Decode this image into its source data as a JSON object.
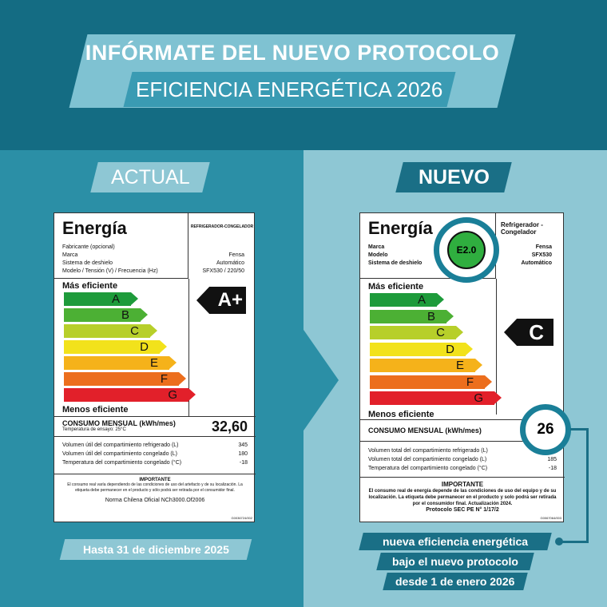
{
  "header": {
    "line1": "INFÓRMATE DEL NUEVO PROTOCOLO DE",
    "line2": "EFICIENCIA ENERGÉTICA 2026"
  },
  "left": {
    "tag": "ACTUAL",
    "footer": "Hasta 31 de diciembre 2025"
  },
  "right": {
    "tag": "NUEVO",
    "footer_lines": [
      "nueva eficiencia energética",
      "bajo el nuevo protocolo",
      "desde 1 de enero 2026"
    ]
  },
  "old_label": {
    "title": "Energía",
    "category": "REFRIGERADOR-CONGELADOR",
    "fields": [
      {
        "k": "Fabricante (opcional)",
        "v": ""
      },
      {
        "k": "Marca",
        "v": "Fensa"
      },
      {
        "k": "Sistema de deshielo",
        "v": "Automático"
      },
      {
        "k": "Modelo / Tensión (V) / Frecuencia (Hz)",
        "v": "SFX530 / 220/50"
      }
    ],
    "mas": "Más eficiente",
    "menos": "Menos eficiente",
    "grades": [
      "A",
      "B",
      "C",
      "D",
      "E",
      "F",
      "G"
    ],
    "rating": "A+",
    "consumo": "CONSUMO MENSUAL (kWh/mes)",
    "consumo_value": "32,60",
    "temp_test": "Temperatura de ensayo: 25°C",
    "specs": [
      {
        "k": "Volumen útil del compartimiento refrigerado (L)",
        "v": "345"
      },
      {
        "k": "Volumen útil del compartimiento congelado (L)",
        "v": "180"
      },
      {
        "k": "Temperatura del compartimiento congelado (°C)",
        "v": "-18"
      }
    ],
    "importante": "IMPORTANTE",
    "note": "El consumo real varía dependiendo de las condiciones de uso del artefacto y de su localización. La etiqueta debe permanecer en el producto y sólo podrá ser retirada por el consumidor final.",
    "norma": "Norma Chilena Oficial NCh3000.Of2006",
    "code": "G0036724/002"
  },
  "new_label": {
    "title": "Energía",
    "category": "Refrigerador - Congelador",
    "fields": [
      {
        "k": "Marca",
        "v": "Fensa"
      },
      {
        "k": "Modelo",
        "v": "SFX530"
      },
      {
        "k": "Sistema de deshielo",
        "v": "Automático"
      }
    ],
    "badge": "E2.0",
    "mas": "Más eficiente",
    "menos": "Menos eficiente",
    "grades": [
      "A",
      "B",
      "C",
      "D",
      "E",
      "F",
      "G"
    ],
    "rating": "C",
    "consumo": "CONSUMO MENSUAL (kWh/mes)",
    "consumo_value": "26",
    "specs": [
      {
        "k": "Volumen total del compartimiento refrigerado (L)",
        "v": ""
      },
      {
        "k": "Volumen total del compartimiento congelado (L)",
        "v": "185"
      },
      {
        "k": "Temperatura del compartimiento congelado (°C)",
        "v": "-18"
      }
    ],
    "importante": "IMPORTANTE",
    "note": "El consumo real de energía depende de las condiciones de uso del equipo y de su localización. La etiqueta debe permanecer en el producto y solo podrá ser retirada por el consumidor final. Actualización 2024.",
    "protocolo": "Protocolo SEC PE N° 1/17/2",
    "code": "G0067064/003"
  },
  "colors": {
    "A": "#1e9b3b",
    "B": "#4cb034",
    "C": "#b7cf2a",
    "D": "#f2e21b",
    "E": "#f5b21a",
    "F": "#ec6e1d",
    "G": "#e2202a"
  }
}
